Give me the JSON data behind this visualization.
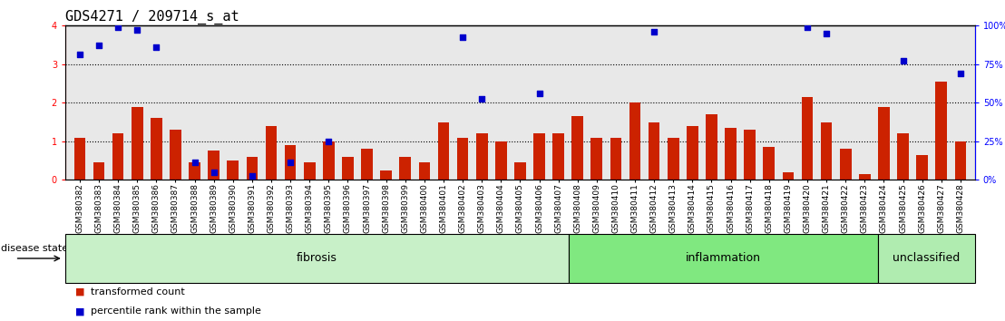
{
  "title": "GDS4271 / 209714_s_at",
  "samples": [
    "GSM380382",
    "GSM380383",
    "GSM380384",
    "GSM380385",
    "GSM380386",
    "GSM380387",
    "GSM380388",
    "GSM380389",
    "GSM380390",
    "GSM380391",
    "GSM380392",
    "GSM380393",
    "GSM380394",
    "GSM380395",
    "GSM380396",
    "GSM380397",
    "GSM380398",
    "GSM380399",
    "GSM380400",
    "GSM380401",
    "GSM380402",
    "GSM380403",
    "GSM380404",
    "GSM380405",
    "GSM380406",
    "GSM380407",
    "GSM380408",
    "GSM380409",
    "GSM380410",
    "GSM380411",
    "GSM380412",
    "GSM380413",
    "GSM380414",
    "GSM380415",
    "GSM380416",
    "GSM380417",
    "GSM380418",
    "GSM380419",
    "GSM380420",
    "GSM380421",
    "GSM380422",
    "GSM380423",
    "GSM380424",
    "GSM380425",
    "GSM380426",
    "GSM380427",
    "GSM380428"
  ],
  "red_bars": [
    1.1,
    0.45,
    1.2,
    1.9,
    1.6,
    1.3,
    0.45,
    0.75,
    0.5,
    0.6,
    1.4,
    0.9,
    0.45,
    1.0,
    0.6,
    0.8,
    0.25,
    0.6,
    0.45,
    1.5,
    1.1,
    1.2,
    1.0,
    0.45,
    1.2,
    1.2,
    1.65,
    1.1,
    1.1,
    2.0,
    1.5,
    1.1,
    1.4,
    1.7,
    1.35,
    1.3,
    0.85,
    0.2,
    2.15,
    1.5,
    0.8,
    0.15,
    1.9,
    1.2,
    0.65,
    2.55,
    1.0
  ],
  "blue_dots": [
    3.25,
    3.5,
    3.95,
    3.9,
    3.45,
    null,
    0.45,
    0.2,
    null,
    0.1,
    null,
    0.45,
    null,
    1.0,
    null,
    null,
    null,
    null,
    null,
    null,
    3.7,
    2.1,
    null,
    null,
    2.25,
    null,
    null,
    null,
    null,
    null,
    3.85,
    null,
    null,
    null,
    null,
    null,
    null,
    null,
    3.95,
    3.8,
    null,
    null,
    null,
    3.1,
    null,
    null,
    2.75
  ],
  "groups": [
    {
      "label": "fibrosis",
      "start": 0,
      "end": 26,
      "color": "#c8f0c8"
    },
    {
      "label": "inflammation",
      "start": 26,
      "end": 42,
      "color": "#80e880"
    },
    {
      "label": "unclassified",
      "start": 42,
      "end": 47,
      "color": "#b0ecb0"
    }
  ],
  "ylim": [
    0,
    4
  ],
  "bar_color": "#cc2200",
  "dot_color": "#0000cc",
  "background_color": "#ffffff",
  "plot_bg_color": "#e8e8e8",
  "title_fontsize": 11,
  "tick_fontsize": 6.5,
  "group_label_fontsize": 9,
  "legend_fontsize": 8
}
